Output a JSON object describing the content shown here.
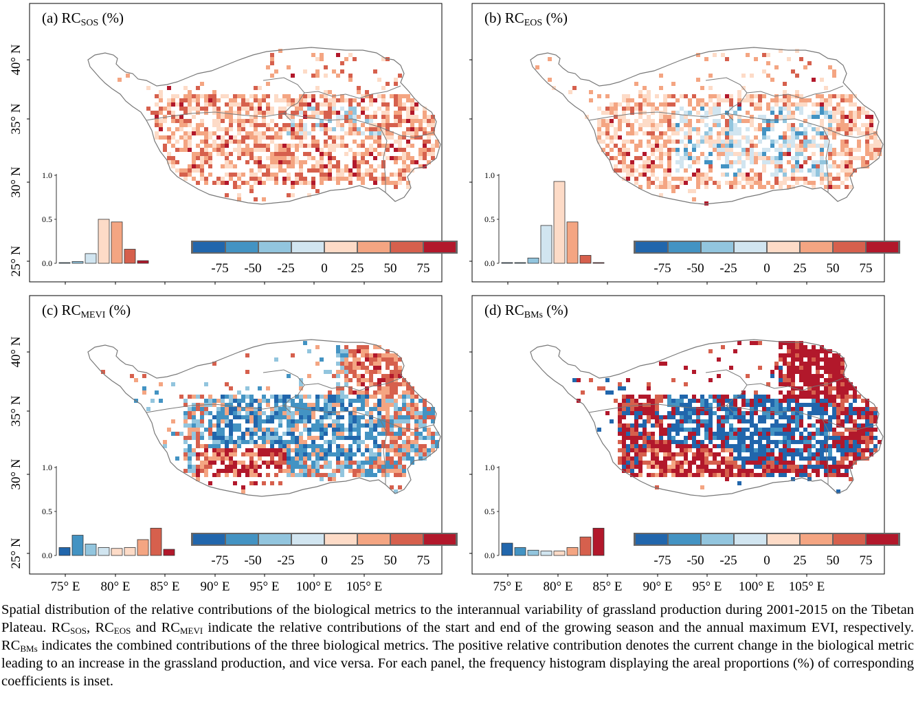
{
  "panels": [
    {
      "id": "a",
      "label_prefix": "(a) RC",
      "label_sub": "SOS",
      "label_suffix": " (%)",
      "hist": [
        0.003,
        0.02,
        0.11,
        0.5,
        0.47,
        0.16,
        0.03
      ],
      "pattern": "sos"
    },
    {
      "id": "b",
      "label_prefix": "(b) RC",
      "label_sub": "EOS",
      "label_suffix": " (%)",
      "hist": [
        0.002,
        0.004,
        0.06,
        0.43,
        0.93,
        0.47,
        0.09,
        0.008
      ],
      "pattern": "eos"
    },
    {
      "id": "c",
      "label_prefix": "(c) RC",
      "label_sub": "MEVI",
      "label_suffix": " (%)",
      "hist": [
        0.09,
        0.23,
        0.13,
        0.09,
        0.08,
        0.09,
        0.18,
        0.31,
        0.07
      ],
      "pattern": "mevi"
    },
    {
      "id": "d",
      "label_prefix": "(d) RC",
      "label_sub": "BMs",
      "label_suffix": " (%)",
      "hist": [
        0.14,
        0.09,
        0.06,
        0.05,
        0.05,
        0.09,
        0.21,
        0.31
      ],
      "pattern": "bms"
    }
  ],
  "y_ticks": [
    "25° N",
    "30° N",
    "35° N",
    "40° N"
  ],
  "x_ticks": [
    "75° E",
    "80° E",
    "85° E",
    "90° E",
    "95° E",
    "100° E",
    "105° E"
  ],
  "hist_axis_ticks": [
    "0.0",
    "0.5",
    "1.0"
  ],
  "legend_ticks": [
    "-75",
    "-50",
    "-25",
    "0",
    "25",
    "50",
    "75"
  ],
  "colors": [
    "#2166ac",
    "#4393c3",
    "#92c5de",
    "#d1e5f0",
    "#fddbc7",
    "#f4a582",
    "#d6604d",
    "#b2182b"
  ],
  "caption_parts": [
    {
      "t": "Spatial distribution of the relative contributions of the biological metrics to the interannual variability of grassland production during 2001-2015 on the Tibetan Plateau. RC"
    },
    {
      "s": "SOS"
    },
    {
      "t": ", RC"
    },
    {
      "s": "EOS"
    },
    {
      "t": " and RC"
    },
    {
      "s": "MEVI"
    },
    {
      "t": " indicate the relative contributions of the start and end of the growing season and the annual maximum EVI, respectively. RC"
    },
    {
      "s": "BMs"
    },
    {
      "t": " indicates the combined contributions of the three biological metrics. The positive relative contribution denotes the current change in the biological metric leading to an increase in the grassland production, and vice versa. For each panel, the frequency histogram displaying the areal proportions (%) of corresponding coefficients is inset."
    }
  ]
}
